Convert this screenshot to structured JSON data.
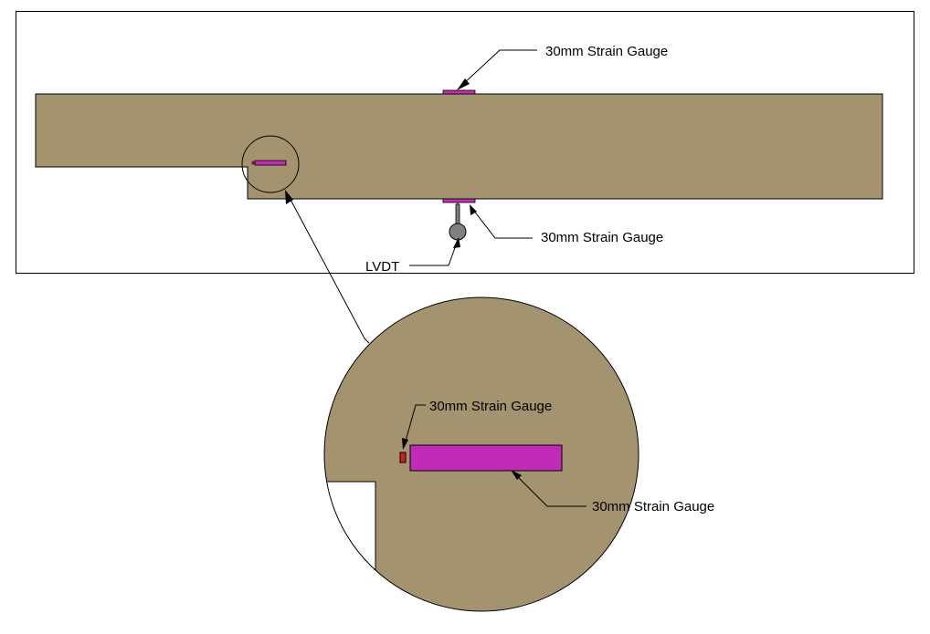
{
  "labels": {
    "gauge_top": "30mm Strain Gauge",
    "gauge_bottom": "30mm Strain Gauge",
    "lvdt": "LVDT",
    "detail_gauge_small": "30mm Strain Gauge",
    "detail_gauge_large": "30mm Strain Gauge"
  },
  "colors": {
    "beam": "#A3946F",
    "gauge": "#C12BB5",
    "gauge_small": "#D0201F",
    "lvdt": "#808080",
    "outline": "#000000",
    "background": "#FFFFFF"
  }
}
